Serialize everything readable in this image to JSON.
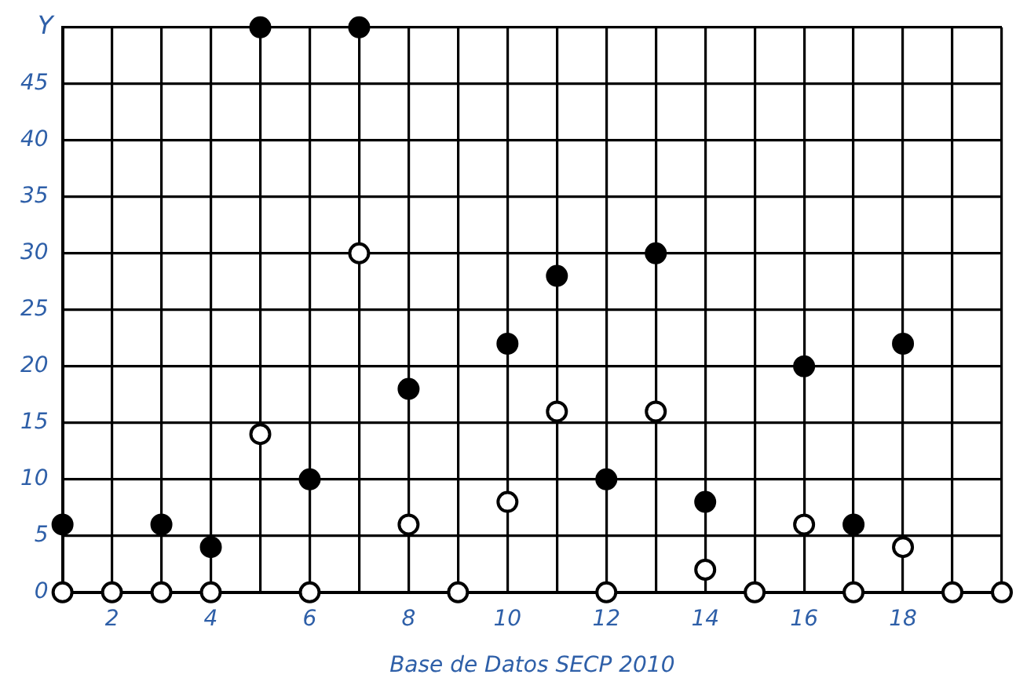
{
  "chart_data": {
    "type": "scatter",
    "xlabel": "Base de Datos SECP 2010",
    "ylabel": "Y",
    "xlim": [
      1,
      20
    ],
    "ylim": [
      0,
      50
    ],
    "xticks": [
      {
        "value": 1,
        "label": null
      },
      2,
      {
        "value": 3,
        "label": null
      },
      4,
      {
        "value": 5,
        "label": null
      },
      6,
      {
        "value": 7,
        "label": null
      },
      8,
      {
        "value": 9,
        "label": null
      },
      10,
      {
        "value": 11,
        "label": null
      },
      12,
      {
        "value": 13,
        "label": null
      },
      14,
      {
        "value": 15,
        "label": null
      },
      16,
      {
        "value": 17,
        "label": null
      },
      18,
      {
        "value": 19,
        "label": null
      },
      {
        "value": 20,
        "label": null
      }
    ],
    "yticks": [
      0,
      5,
      10,
      15,
      20,
      25,
      30,
      35,
      40,
      45,
      {
        "value": 50,
        "label": null
      }
    ],
    "grid": true,
    "marker": "circle",
    "legend": false,
    "series": [
      {
        "color": "#000000",
        "x": [
          1,
          3,
          4,
          5,
          6,
          7,
          8,
          10,
          11,
          12,
          13,
          14,
          16,
          17,
          18
        ],
        "values": [
          6,
          6,
          4,
          50,
          10,
          50,
          18,
          22,
          28,
          10,
          30,
          8,
          20,
          6,
          22
        ]
      },
      {
        "color": "#ffffff",
        "x": [
          1,
          2,
          3,
          4,
          5,
          6,
          7,
          8,
          9,
          10,
          11,
          12,
          13,
          14,
          15,
          16,
          17,
          18,
          19,
          20
        ],
        "values": [
          0,
          0,
          0,
          0,
          14,
          0,
          30,
          6,
          0,
          8,
          16,
          0,
          16,
          2,
          0,
          6,
          0,
          4,
          0,
          0
        ]
      }
    ]
  }
}
